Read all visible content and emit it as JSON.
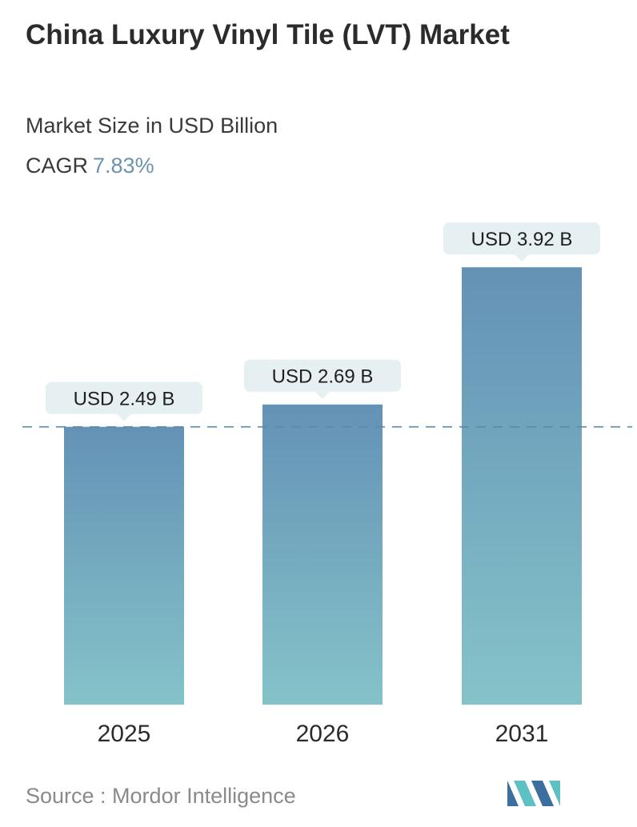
{
  "header": {
    "title": "China Luxury Vinyl Tile (LVT) Market",
    "subtitle": "Market Size in USD Billion",
    "cagr_label": "CAGR",
    "cagr_value": "7.83%"
  },
  "footer": {
    "source": "Source :  Mordor Intelligence"
  },
  "colors": {
    "bar_top": "#6492b6",
    "bar_bottom": "#85c3c9",
    "label_bg": "#e6eff1",
    "dash_line": "#5a8aa5",
    "logo_dark": "#3d6f9e",
    "logo_light": "#5fc0c4"
  },
  "chart_data": {
    "type": "bar",
    "title": "China Luxury Vinyl Tile (LVT) Market",
    "subtitle": "Market Size in USD Billion",
    "categories": [
      "2025",
      "2026",
      "2031"
    ],
    "values": [
      2.49,
      2.69,
      3.92
    ],
    "data_labels": [
      "USD 2.49 B",
      "USD 2.69 B",
      "USD 3.92 B"
    ],
    "reference_line": 2.49,
    "grid": false,
    "legend": "none"
  }
}
